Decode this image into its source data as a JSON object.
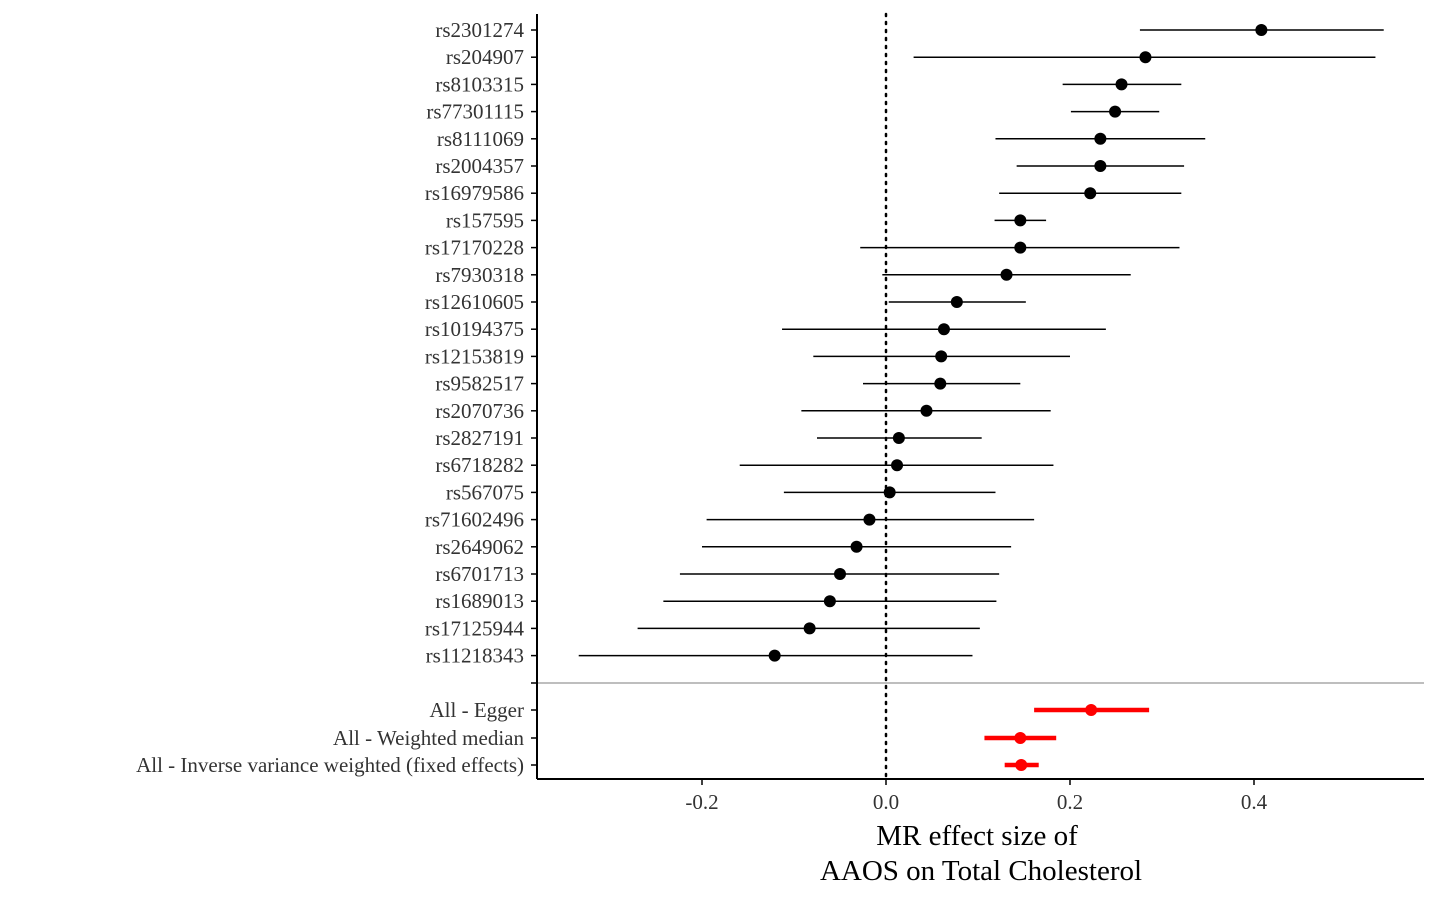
{
  "chart_data": {
    "type": "forest",
    "xlabel_lines": [
      "MR effect size of",
      "AAOS on Total Cholesterol"
    ],
    "xlim": [
      -0.38,
      0.58
    ],
    "x_ticks": [
      {
        "value": -0.2,
        "label": "-0.2"
      },
      {
        "value": 0.0,
        "label": "0.0"
      },
      {
        "value": 0.2,
        "label": "0.2"
      },
      {
        "value": 0.4,
        "label": "0.4"
      }
    ],
    "reference_line": {
      "value": 0,
      "style": "dotted"
    },
    "grid": false,
    "colors": {
      "snp": "#000000",
      "summary": "#ff0000",
      "separator": "#bebebe",
      "axis": "#000000"
    },
    "snps": [
      {
        "label": "rs2301274",
        "est": 0.408,
        "lo": 0.276,
        "hi": 0.541
      },
      {
        "label": "rs204907",
        "est": 0.282,
        "lo": 0.03,
        "hi": 0.532
      },
      {
        "label": "rs8103315",
        "est": 0.256,
        "lo": 0.192,
        "hi": 0.321
      },
      {
        "label": "rs77301115",
        "est": 0.249,
        "lo": 0.201,
        "hi": 0.297
      },
      {
        "label": "rs8111069",
        "est": 0.233,
        "lo": 0.119,
        "hi": 0.347
      },
      {
        "label": "rs2004357",
        "est": 0.233,
        "lo": 0.142,
        "hi": 0.324
      },
      {
        "label": "rs16979586",
        "est": 0.222,
        "lo": 0.123,
        "hi": 0.321
      },
      {
        "label": "rs157595",
        "est": 0.146,
        "lo": 0.118,
        "hi": 0.174
      },
      {
        "label": "rs17170228",
        "est": 0.146,
        "lo": -0.028,
        "hi": 0.319
      },
      {
        "label": "rs7930318",
        "est": 0.131,
        "lo": -0.004,
        "hi": 0.266
      },
      {
        "label": "rs12610605",
        "est": 0.077,
        "lo": 0.003,
        "hi": 0.152
      },
      {
        "label": "rs10194375",
        "est": 0.063,
        "lo": -0.113,
        "hi": 0.239
      },
      {
        "label": "rs12153819",
        "est": 0.06,
        "lo": -0.079,
        "hi": 0.2
      },
      {
        "label": "rs9582517",
        "est": 0.059,
        "lo": -0.025,
        "hi": 0.146
      },
      {
        "label": "rs2070736",
        "est": 0.044,
        "lo": -0.092,
        "hi": 0.179
      },
      {
        "label": "rs2827191",
        "est": 0.014,
        "lo": -0.075,
        "hi": 0.104
      },
      {
        "label": "rs6718282",
        "est": 0.012,
        "lo": -0.159,
        "hi": 0.182
      },
      {
        "label": "rs567075",
        "est": 0.004,
        "lo": -0.111,
        "hi": 0.119
      },
      {
        "label": "rs71602496",
        "est": -0.018,
        "lo": -0.195,
        "hi": 0.161
      },
      {
        "label": "rs2649062",
        "est": -0.032,
        "lo": -0.2,
        "hi": 0.136
      },
      {
        "label": "rs6701713",
        "est": -0.05,
        "lo": -0.224,
        "hi": 0.123
      },
      {
        "label": "rs1689013",
        "est": -0.061,
        "lo": -0.242,
        "hi": 0.12
      },
      {
        "label": "rs17125944",
        "est": -0.083,
        "lo": -0.27,
        "hi": 0.102
      },
      {
        "label": "rs11218343",
        "est": -0.121,
        "lo": -0.334,
        "hi": 0.094
      }
    ],
    "summary": [
      {
        "label": "All - Egger",
        "est": 0.223,
        "lo": 0.161,
        "hi": 0.286
      },
      {
        "label": "All - Weighted median",
        "est": 0.146,
        "lo": 0.107,
        "hi": 0.185
      },
      {
        "label": "All - Inverse variance weighted (fixed effects)",
        "est": 0.147,
        "lo": 0.129,
        "hi": 0.166
      }
    ]
  }
}
